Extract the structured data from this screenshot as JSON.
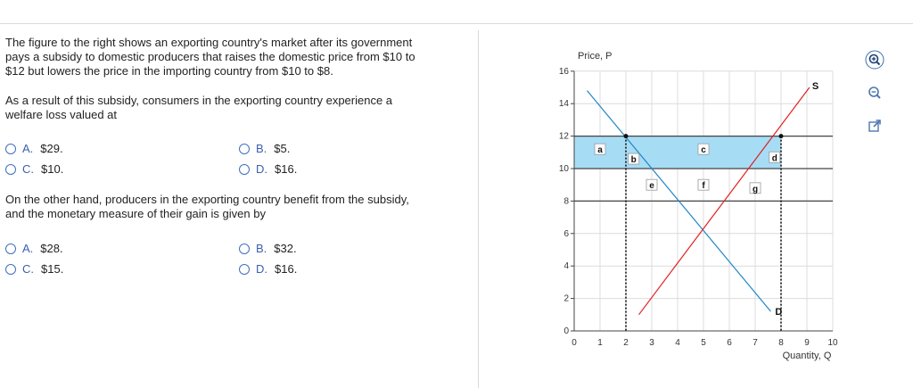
{
  "question1": {
    "prompt_line1": "The figure to the right shows an exporting country's market after its government",
    "prompt_line2": "pays a subsidy to domestic producers that raises the domestic price from $10 to",
    "prompt_line3": "$12 but lowers the price in the importing country from $10 to $8.",
    "question_line1": "As a result of this subsidy, consumers in the exporting country experience a",
    "question_line2": "welfare loss valued at",
    "options": [
      {
        "letter": "A.",
        "value": "$29."
      },
      {
        "letter": "B.",
        "value": "$5."
      },
      {
        "letter": "C.",
        "value": "$10."
      },
      {
        "letter": "D.",
        "value": "$16."
      }
    ]
  },
  "question2": {
    "line1": "On the other hand, producers in the exporting country benefit from the subsidy,",
    "line2": "and the monetary measure of their gain is given by",
    "options": [
      {
        "letter": "A.",
        "value": "$28."
      },
      {
        "letter": "B.",
        "value": "$32."
      },
      {
        "letter": "C.",
        "value": "$15."
      },
      {
        "letter": "D.",
        "value": "$16."
      }
    ]
  },
  "tools": [
    "zoom-in-icon",
    "zoom-out-icon",
    "expand-icon"
  ],
  "chart_data": {
    "type": "line",
    "ylabel": "Price, P",
    "xlabel": "Quantity, Q",
    "xlim": [
      0,
      10
    ],
    "ylim": [
      0,
      16
    ],
    "xticks": [
      "0",
      "1",
      "2",
      "3",
      "4",
      "5",
      "6",
      "7",
      "8",
      "9",
      "10"
    ],
    "yticks": [
      "0",
      "2",
      "4",
      "6",
      "8",
      "10",
      "12",
      "14",
      "16"
    ],
    "grid": true,
    "series": [
      {
        "name": "D",
        "color": "#1f86c7",
        "points": [
          [
            0.5,
            14.8
          ],
          [
            7.6,
            1.2
          ]
        ]
      },
      {
        "name": "S",
        "color": "#e02020",
        "points": [
          [
            2.5,
            1.0
          ],
          [
            9.1,
            15.0
          ]
        ]
      }
    ],
    "price_lines": [
      12,
      10,
      8
    ],
    "shaded_region": {
      "x": [
        0,
        8
      ],
      "y": [
        10,
        12
      ],
      "color": "#a7dcf5"
    },
    "dotted_lines": [
      {
        "x": 2
      },
      {
        "x": 8
      }
    ],
    "points": [
      [
        2,
        12
      ],
      [
        8,
        12
      ]
    ],
    "area_labels": [
      {
        "text": "a",
        "x": 1,
        "y": 11.2
      },
      {
        "text": "b",
        "x": 2.3,
        "y": 10.6
      },
      {
        "text": "c",
        "x": 5,
        "y": 11.2
      },
      {
        "text": "d",
        "x": 7.75,
        "y": 10.7
      },
      {
        "text": "e",
        "x": 3.0,
        "y": 9.0
      },
      {
        "text": "f",
        "x": 5.0,
        "y": 9.0
      },
      {
        "text": "g",
        "x": 7.0,
        "y": 8.8
      }
    ]
  }
}
